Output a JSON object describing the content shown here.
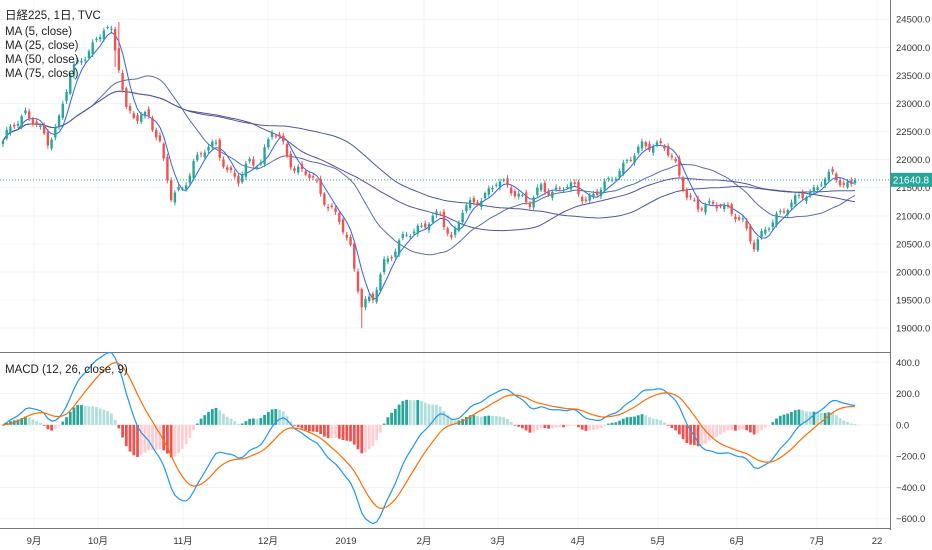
{
  "legend": {
    "symbol": "日経225, 1日, TVC",
    "ma5": "MA (5, close)",
    "ma25": "MA (25, close)",
    "ma50": "MA (50, close)",
    "ma75": "MA (75, close)",
    "macd": "MACD (12, 26, close, 9)"
  },
  "price_label": "21640.8",
  "colors": {
    "up": "#26a69a",
    "down": "#ef5350",
    "ma5": "#2962ff",
    "ma25": "#5b6ea6",
    "ma50": "#5c4ea8",
    "ma75": "#4a5a9a",
    "macd": "#2196f3",
    "signal": "#ff6d00",
    "hist_up_strong": "#26a69a",
    "hist_up_weak": "#b2dfdb",
    "hist_dn_strong": "#ef5350",
    "hist_dn_weak": "#ffcdd2",
    "price_line": "#26a69a"
  },
  "chart_data": [
    {
      "type": "candlestick",
      "y_ticks": [
        "24500.0",
        "24000.0",
        "23500.0",
        "23000.0",
        "22500.0",
        "22000.0",
        "21500.0",
        "21000.0",
        "20500.0",
        "20000.0",
        "19500.0",
        "19000.0"
      ],
      "ylim": [
        18700,
        24700
      ],
      "x_ticks": [
        "9月",
        "10月",
        "11月",
        "12月",
        "2019",
        "2月",
        "3月",
        "4月",
        "5月",
        "6月",
        "7月",
        "22"
      ],
      "last_price": 21640.8,
      "anchors": [
        [
          0,
          22300
        ],
        [
          3,
          22650
        ],
        [
          6,
          22850
        ],
        [
          9,
          22600
        ],
        [
          12,
          22300
        ],
        [
          15,
          22750
        ],
        [
          18,
          23500
        ],
        [
          21,
          23800
        ],
        [
          24,
          24050
        ],
        [
          27,
          24300
        ],
        [
          29,
          24250
        ],
        [
          31,
          23700
        ],
        [
          33,
          22900
        ],
        [
          36,
          22700
        ],
        [
          39,
          22800
        ],
        [
          42,
          22300
        ],
        [
          45,
          21300
        ],
        [
          48,
          21500
        ],
        [
          51,
          21950
        ],
        [
          54,
          22150
        ],
        [
          57,
          22300
        ],
        [
          60,
          21800
        ],
        [
          63,
          21600
        ],
        [
          66,
          22000
        ],
        [
          69,
          21950
        ],
        [
          72,
          22500
        ],
        [
          75,
          22300
        ],
        [
          78,
          21800
        ],
        [
          81,
          21750
        ],
        [
          84,
          21600
        ],
        [
          87,
          21150
        ],
        [
          90,
          20900
        ],
        [
          93,
          20450
        ],
        [
          96,
          19400
        ],
        [
          99,
          19500
        ],
        [
          102,
          20200
        ],
        [
          105,
          20400
        ],
        [
          108,
          20650
        ],
        [
          111,
          20800
        ],
        [
          114,
          20900
        ],
        [
          117,
          21000
        ],
        [
          120,
          20600
        ],
        [
          123,
          21100
        ],
        [
          126,
          21200
        ],
        [
          129,
          21400
        ],
        [
          132,
          21600
        ],
        [
          135,
          21500
        ],
        [
          138,
          21400
        ],
        [
          141,
          21200
        ],
        [
          144,
          21500
        ],
        [
          147,
          21450
        ],
        [
          150,
          21500
        ],
        [
          153,
          21500
        ],
        [
          156,
          21300
        ],
        [
          159,
          21400
        ],
        [
          162,
          21600
        ],
        [
          165,
          21850
        ],
        [
          168,
          22000
        ],
        [
          171,
          22250
        ],
        [
          174,
          22300
        ],
        [
          177,
          22200
        ],
        [
          180,
          21900
        ],
        [
          183,
          21400
        ],
        [
          186,
          21100
        ],
        [
          189,
          21200
        ],
        [
          192,
          21250
        ],
        [
          195,
          21000
        ],
        [
          198,
          20900
        ],
        [
          201,
          20500
        ],
        [
          204,
          20700
        ],
        [
          207,
          21000
        ],
        [
          210,
          21200
        ],
        [
          213,
          21300
        ],
        [
          216,
          21400
        ],
        [
          219,
          21650
        ],
        [
          222,
          21700
        ],
        [
          225,
          21550
        ],
        [
          228,
          21640
        ]
      ]
    },
    {
      "type": "macd",
      "y_ticks": [
        "400.0",
        "200.0",
        "0.0",
        "−200.0",
        "−400.0",
        "−600.0"
      ],
      "ylim": [
        -640,
        440
      ],
      "fast": 12,
      "slow": 26,
      "signal": 9
    }
  ]
}
